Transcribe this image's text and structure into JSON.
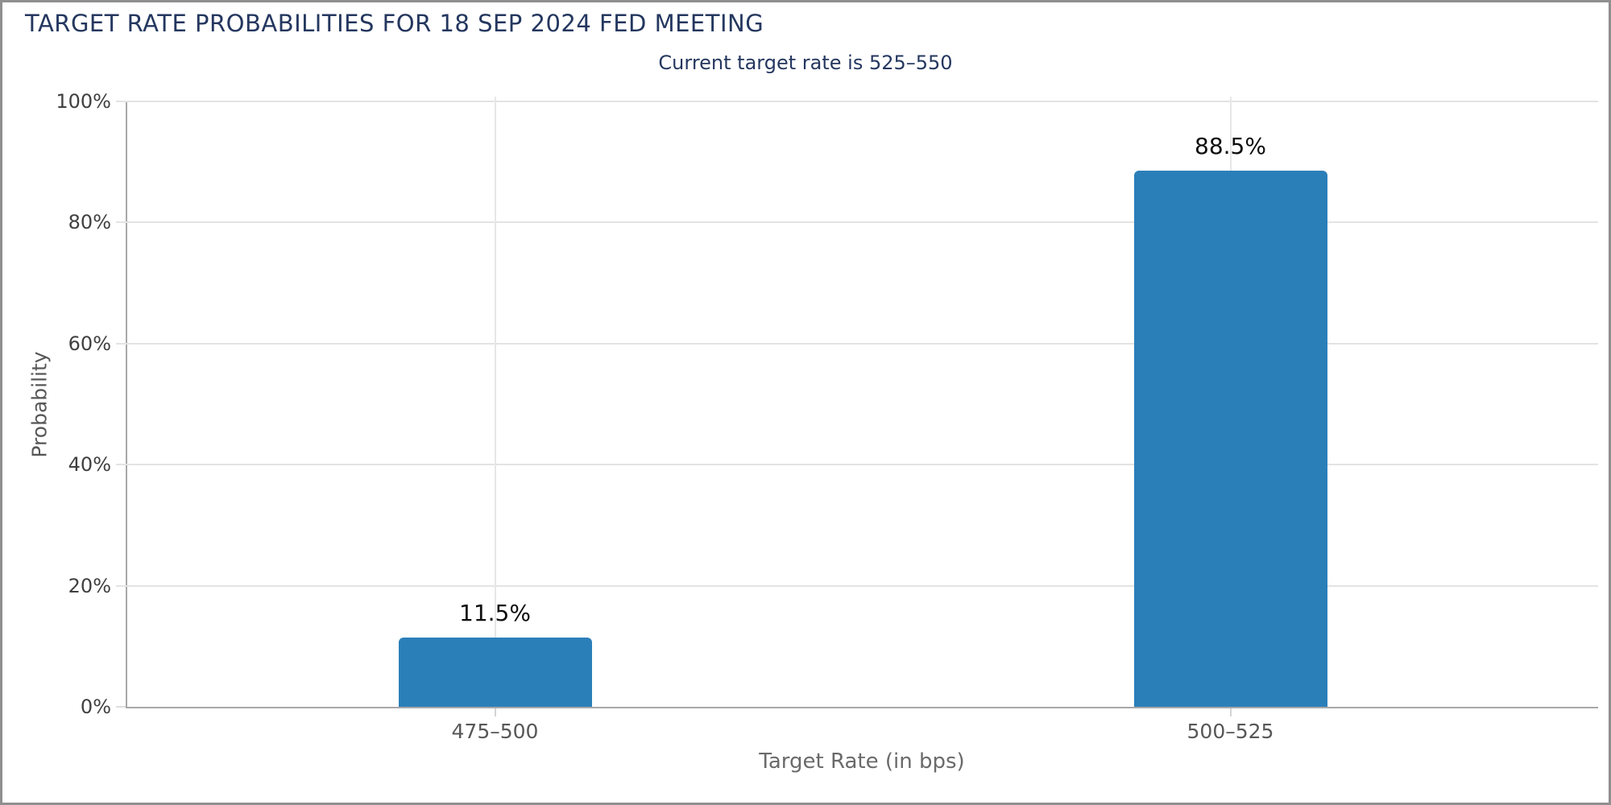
{
  "page": {
    "background": "#ffffff",
    "border_color": "#8f8f8f"
  },
  "chart_data": {
    "type": "bar",
    "title": "TARGET RATE PROBABILITIES FOR 18 SEP 2024 FED MEETING",
    "subtitle": "Current target rate is 525–550",
    "categories": [
      "475–500",
      "500–525"
    ],
    "values": [
      11.5,
      88.5
    ],
    "value_labels": [
      "11.5%",
      "88.5%"
    ],
    "xlabel": "Target Rate (in bps)",
    "ylabel": "Probability",
    "ylim": [
      0,
      100
    ],
    "yticks": [
      "0%",
      "20%",
      "40%",
      "60%",
      "80%",
      "100%"
    ],
    "grid": true,
    "legend_position": "none",
    "bar_color": "#2b7fb9",
    "title_color": "#24375f",
    "axis_color": "#a8a8a8",
    "gridline_color": "#e3e3e3"
  }
}
